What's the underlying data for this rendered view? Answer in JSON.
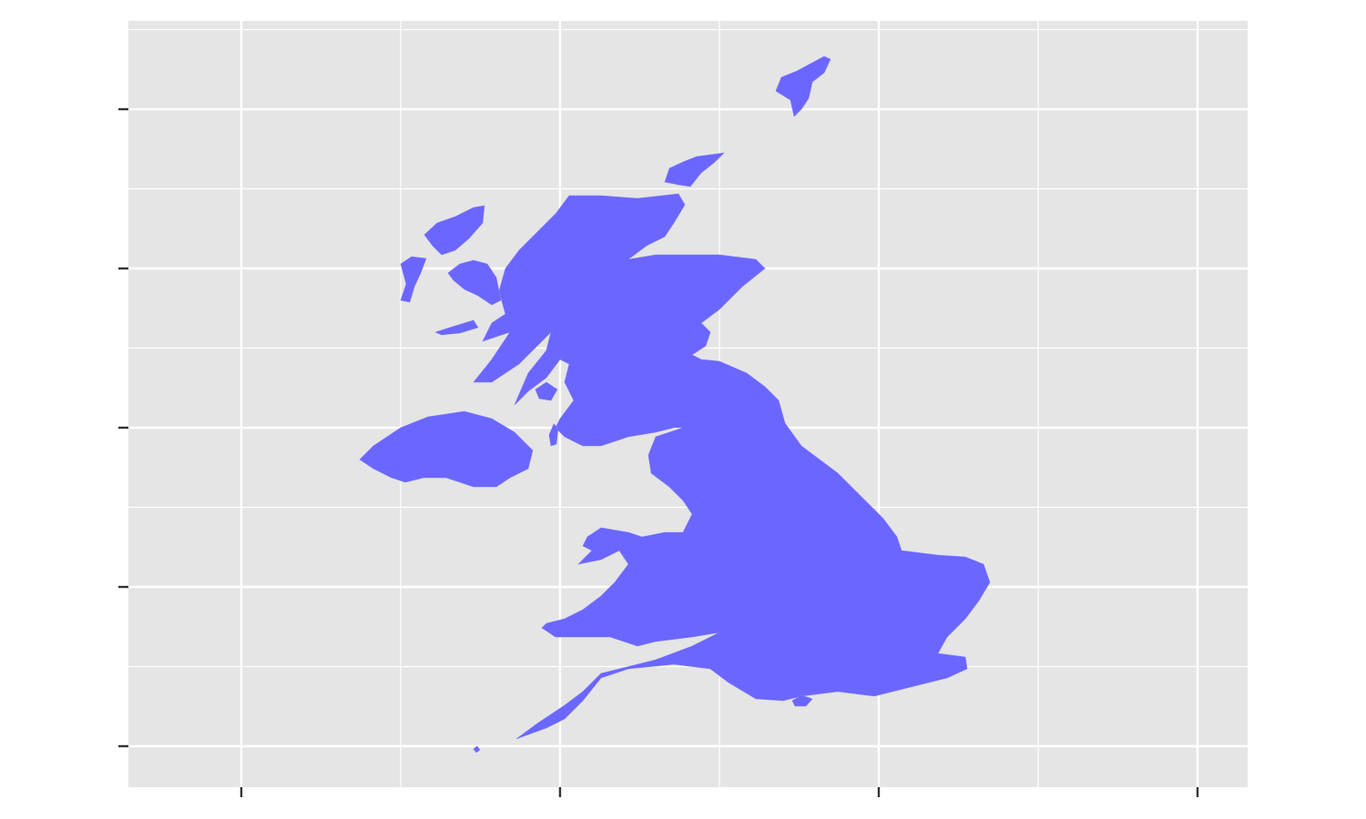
{
  "chart_data": {
    "type": "map",
    "xlim": [
      -11.771,
      5.786
    ],
    "ylim": [
      49.357,
      61.386
    ],
    "xticks": [
      -10,
      -5,
      0,
      5
    ],
    "yticks": [
      50,
      52.5,
      55,
      57.5,
      60
    ],
    "grid": true,
    "color": "#6b66ff"
  }
}
